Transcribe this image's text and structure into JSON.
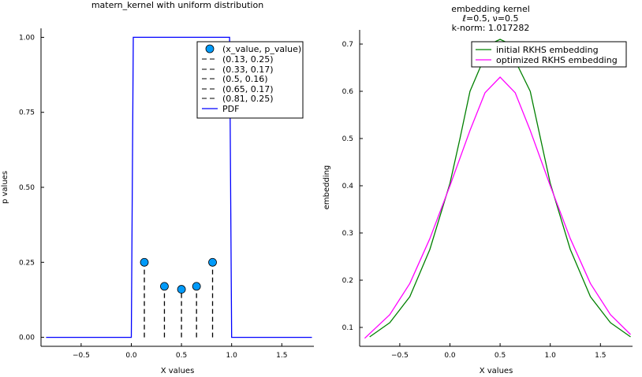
{
  "chart_data": [
    {
      "type": "scatter",
      "title": "matern_kernel with uniform distribution",
      "xlabel": "X values",
      "ylabel": "p values",
      "xlim": [
        -0.9,
        1.82
      ],
      "ylim": [
        -0.03,
        1.03
      ],
      "xticks": [
        -0.5,
        0.0,
        0.5,
        1.0,
        1.5
      ],
      "xtick_labels": [
        "−0.5",
        "0.0",
        "0.5",
        "1.0",
        "1.5"
      ],
      "yticks": [
        0.0,
        0.25,
        0.5,
        0.75,
        1.0
      ],
      "ytick_labels": [
        "0.00",
        "0.25",
        "0.50",
        "0.75",
        "1.00"
      ],
      "legend_position": "top-right",
      "points": {
        "name": "(x_value, p_value)",
        "color": "#009af9",
        "x": [
          0.13,
          0.33,
          0.5,
          0.65,
          0.81
        ],
        "y": [
          0.25,
          0.17,
          0.16,
          0.17,
          0.25
        ]
      },
      "stems": [
        {
          "name": "(0.13, 0.25)",
          "x": 0.13,
          "y": 0.25
        },
        {
          "name": "(0.33, 0.17)",
          "x": 0.33,
          "y": 0.17
        },
        {
          "name": "(0.5, 0.16)",
          "x": 0.5,
          "y": 0.16
        },
        {
          "name": "(0.65, 0.17)",
          "x": 0.65,
          "y": 0.17
        },
        {
          "name": "(0.81, 0.25)",
          "x": 0.81,
          "y": 0.25
        }
      ],
      "pdf": {
        "name": "PDF",
        "color": "#0000ff",
        "x": [
          -0.85,
          0.0,
          0.02,
          0.98,
          1.0,
          1.8
        ],
        "y": [
          0.0,
          0.0,
          1.0,
          1.0,
          0.0,
          0.0
        ]
      }
    },
    {
      "type": "line",
      "title_lines": [
        "embedding kernel",
        "ℓ=0.5, ν=0.5",
        "k-norm: 1.017282"
      ],
      "xlabel": "X values",
      "ylabel": "embedding",
      "xlim": [
        -0.9,
        1.82
      ],
      "ylim": [
        0.06,
        0.73
      ],
      "xticks": [
        -0.5,
        0.0,
        0.5,
        1.0,
        1.5
      ],
      "xtick_labels": [
        "−0.5",
        "0.0",
        "0.5",
        "1.0",
        "1.5"
      ],
      "yticks": [
        0.1,
        0.2,
        0.3,
        0.4,
        0.5,
        0.6,
        0.7
      ],
      "ytick_labels": [
        "0.1",
        "0.2",
        "0.3",
        "0.4",
        "0.5",
        "0.6",
        "0.7"
      ],
      "legend_position": "top-right",
      "series": [
        {
          "name": "initial RKHS embedding",
          "color": "#008000",
          "x": [
            -0.8,
            -0.6,
            -0.4,
            -0.2,
            0.0,
            0.1,
            0.2,
            0.33,
            0.45,
            0.5,
            0.55,
            0.65,
            0.8,
            1.0,
            1.2,
            1.4,
            1.6,
            1.8
          ],
          "y": [
            0.08,
            0.11,
            0.165,
            0.265,
            0.405,
            0.5,
            0.6,
            0.665,
            0.705,
            0.71,
            0.705,
            0.665,
            0.6,
            0.405,
            0.265,
            0.165,
            0.11,
            0.08
          ]
        },
        {
          "name": "optimized RKHS embedding",
          "color": "#ff00ff",
          "x": [
            -0.85,
            -0.6,
            -0.4,
            -0.2,
            0.0,
            0.2,
            0.35,
            0.5,
            0.65,
            0.8,
            1.0,
            1.2,
            1.4,
            1.6,
            1.8
          ],
          "y": [
            0.077,
            0.127,
            0.193,
            0.288,
            0.4,
            0.517,
            0.597,
            0.63,
            0.597,
            0.517,
            0.4,
            0.288,
            0.193,
            0.127,
            0.085
          ]
        }
      ]
    }
  ]
}
